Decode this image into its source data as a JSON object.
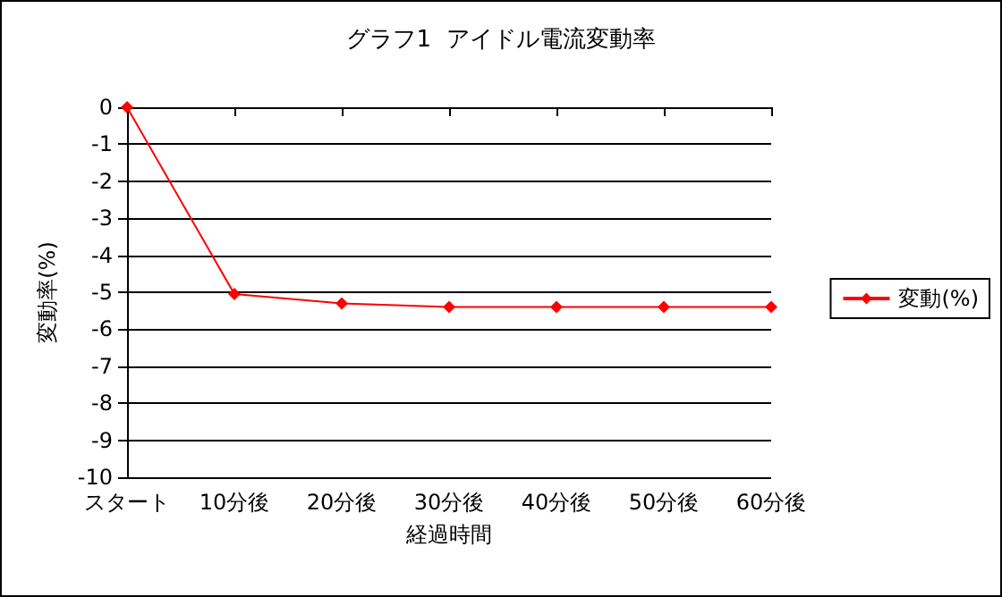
{
  "chart_data": {
    "type": "line",
    "title": "グラフ1  アイドル電流変動率",
    "xlabel": "経過時間",
    "ylabel": "変動率(%)",
    "categories": [
      "スタート",
      "10分後",
      "20分後",
      "30分後",
      "40分後",
      "50分後",
      "60分後"
    ],
    "series": [
      {
        "name": "変動(%)",
        "color": "#ff0000",
        "values": [
          0,
          -5.05,
          -5.3,
          -5.4,
          -5.4,
          -5.4,
          -5.4
        ]
      }
    ],
    "ylim": [
      -10,
      0
    ],
    "yticks": [
      0,
      -1,
      -2,
      -3,
      -4,
      -5,
      -6,
      -7,
      -8,
      -9,
      -10
    ],
    "grid": "y",
    "legend": "right",
    "marker": "diamond",
    "line_style": "solid"
  }
}
